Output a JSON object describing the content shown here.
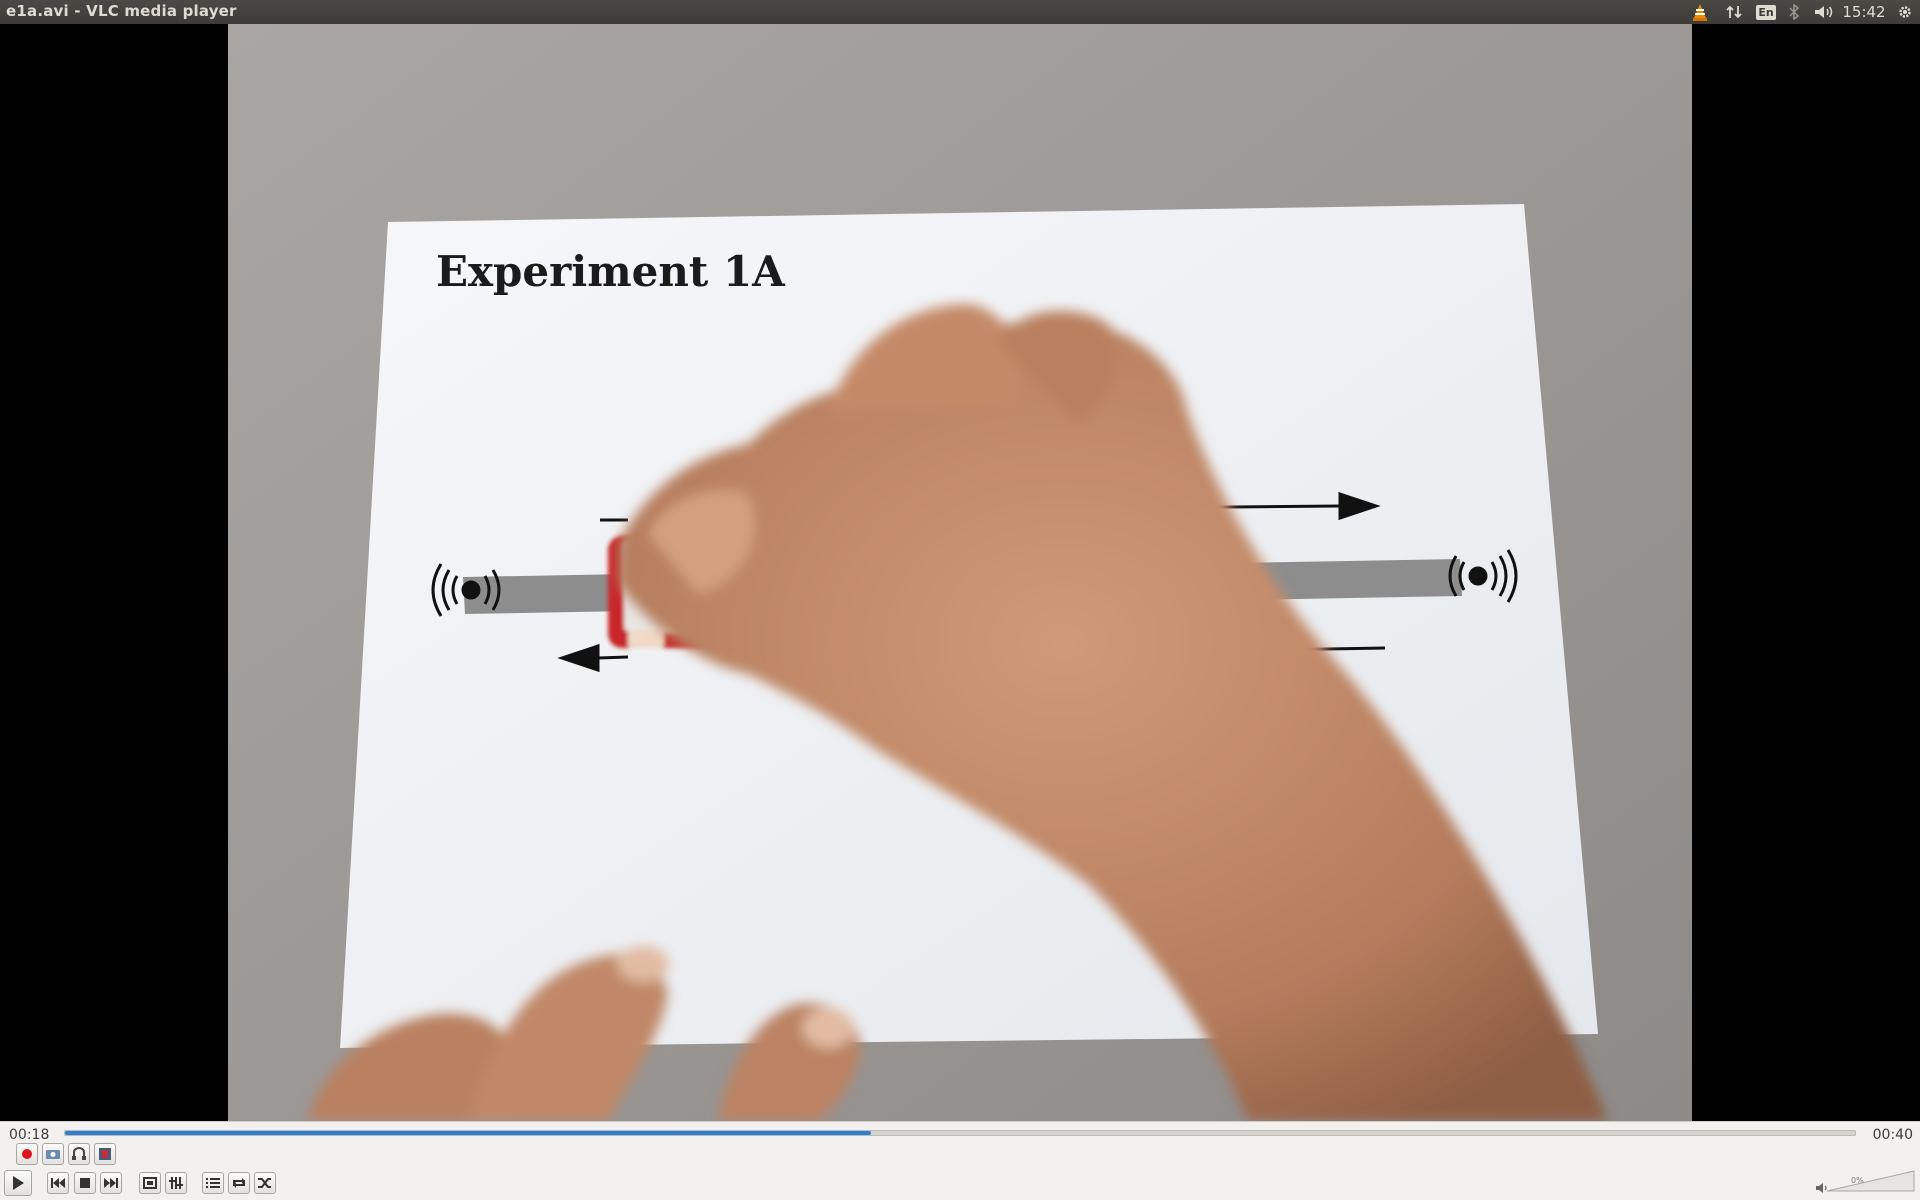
{
  "window": {
    "title": "e1a.avi - VLC media player"
  },
  "system_tray": {
    "icons": [
      "vlc-cone-icon",
      "network-transfer-icon",
      "keyboard-layout-icon",
      "bluetooth-icon",
      "volume-icon",
      "settings-gear-icon"
    ],
    "keyboard_layout": "En",
    "clock": "15:42"
  },
  "video": {
    "paper_heading": "Experiment 1A"
  },
  "playback": {
    "elapsed": "00:18",
    "total": "00:40",
    "progress_fraction": 0.45
  },
  "advanced_controls": {
    "icons": [
      "record-icon",
      "snapshot-icon",
      "loop-ab-icon",
      "frame-step-icon"
    ]
  },
  "main_controls": {
    "icons": [
      "play-icon",
      "previous-icon",
      "stop-icon",
      "next-icon",
      "fullscreen-icon",
      "extended-settings-icon",
      "playlist-icon",
      "loop-icon",
      "shuffle-icon"
    ]
  },
  "volume": {
    "label": "0%",
    "level_fraction": 0.0
  },
  "colors": {
    "seek_fill": "#2f80cf",
    "record": "#e0121b",
    "panel": "#3c3b37"
  }
}
